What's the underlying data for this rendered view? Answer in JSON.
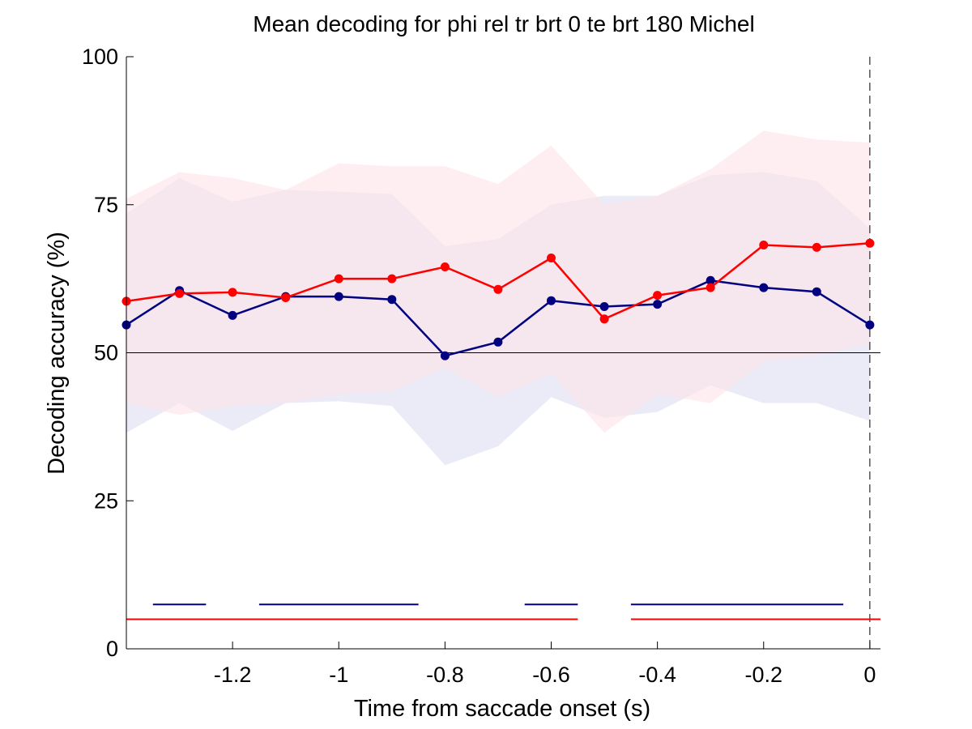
{
  "chart_data": {
    "type": "line",
    "title": "Mean decoding for phi rel tr brt 0 te brt 180  Michel",
    "xlabel": "Time from saccade onset (s)",
    "ylabel": "Decoding accuracy (%)",
    "xlim": [
      -1.4,
      0.02
    ],
    "ylim": [
      0,
      100
    ],
    "x_ticks": [
      -1.2,
      -1,
      -0.8,
      -0.6,
      -0.4,
      -0.2,
      0
    ],
    "x_tick_labels": [
      "-1.2",
      "-1",
      "-0.8",
      "-0.6",
      "-0.4",
      "-0.2",
      "0"
    ],
    "y_ticks": [
      0,
      25,
      50,
      75,
      100
    ],
    "y_tick_labels": [
      "0",
      "25",
      "50",
      "75",
      "100"
    ],
    "grid": false,
    "chance_level": 50,
    "event_marker_x": 0,
    "x": [
      -1.4,
      -1.3,
      -1.2,
      -1.1,
      -1.0,
      -0.9,
      -0.8,
      -0.7,
      -0.6,
      -0.5,
      -0.4,
      -0.3,
      -0.2,
      -0.1,
      0.0
    ],
    "series": [
      {
        "color": "#000080",
        "band_color": "#e6e6f5",
        "values": [
          54.7,
          60.5,
          56.3,
          59.5,
          59.5,
          59.0,
          49.5,
          51.8,
          58.8,
          57.8,
          58.2,
          62.2,
          61.0,
          60.3,
          54.7
        ],
        "band_upper": [
          73.5,
          79.5,
          75.5,
          77.5,
          77.2,
          76.8,
          68.0,
          69.2,
          75.0,
          76.5,
          76.5,
          80.0,
          80.5,
          79.0,
          71.0
        ],
        "band_lower": [
          36.5,
          41.5,
          36.8,
          41.5,
          41.8,
          41.0,
          31.0,
          34.2,
          42.5,
          39.0,
          40.0,
          44.5,
          41.5,
          41.5,
          38.5
        ],
        "significance_segments": [
          [
            -1.35,
            -1.25
          ],
          [
            -1.15,
            -0.85
          ],
          [
            -0.65,
            -0.55
          ],
          [
            -0.45,
            -0.05
          ]
        ],
        "significance_y": 7.5
      },
      {
        "color": "#ff0000",
        "band_color": "#fde3e8",
        "values": [
          58.7,
          60.0,
          60.2,
          59.3,
          62.5,
          62.5,
          64.5,
          60.7,
          66.0,
          55.7,
          59.7,
          61.0,
          68.2,
          67.8,
          68.5
        ],
        "band_upper": [
          76.0,
          80.5,
          79.5,
          77.5,
          82.0,
          81.5,
          81.5,
          78.5,
          85.0,
          75.0,
          76.5,
          81.0,
          87.5,
          86.0,
          85.5
        ],
        "band_lower": [
          41.5,
          39.5,
          41.0,
          41.5,
          43.0,
          43.5,
          47.5,
          42.5,
          46.5,
          36.5,
          43.0,
          41.5,
          48.5,
          49.5,
          51.5
        ],
        "significance_segments": [
          [
            -1.4,
            -0.55
          ],
          [
            -0.45,
            0.02
          ]
        ],
        "significance_y": 5
      }
    ]
  }
}
